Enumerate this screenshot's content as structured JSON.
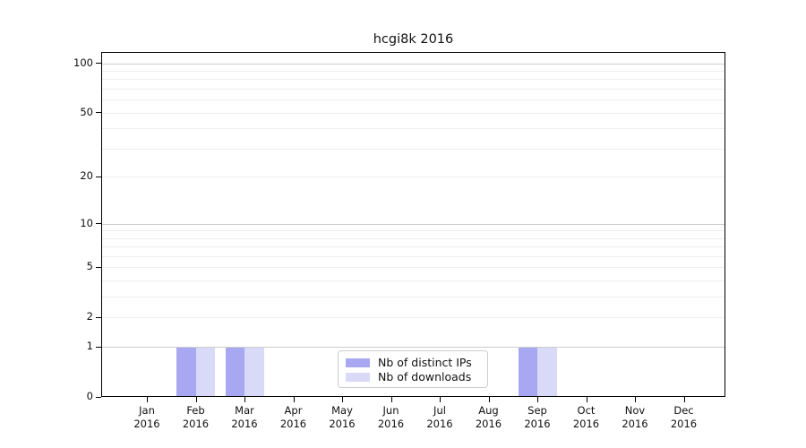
{
  "chart_data": {
    "type": "bar",
    "title": "hcgi8k 2016",
    "categories": [
      "Jan 2016",
      "Feb 2016",
      "Mar 2016",
      "Apr 2016",
      "May 2016",
      "Jun 2016",
      "Jul 2016",
      "Aug 2016",
      "Sep 2016",
      "Oct 2016",
      "Nov 2016",
      "Dec 2016"
    ],
    "series": [
      {
        "name": "Nb of distinct IPs",
        "color": "#a8a8f2",
        "values": [
          0,
          1,
          1,
          0,
          0,
          0,
          0,
          0,
          1,
          0,
          0,
          0
        ]
      },
      {
        "name": "Nb of downloads",
        "color": "#d9d9f8",
        "values": [
          0,
          1,
          1,
          0,
          0,
          0,
          0,
          0,
          1,
          0,
          0,
          0
        ]
      }
    ],
    "xlabel": "",
    "ylabel": "",
    "yscale": "log1p",
    "ylim": [
      0,
      117
    ],
    "y_ticks": [
      0,
      1,
      2,
      5,
      10,
      20,
      50,
      100
    ],
    "y_gridlines_major": [
      1,
      10,
      100
    ],
    "y_gridlines_minor": [
      2,
      3,
      4,
      5,
      6,
      7,
      8,
      9,
      20,
      30,
      40,
      50,
      60,
      70,
      80,
      90
    ],
    "grid": "horizontal",
    "legend_position": "bottom-center",
    "colors": {
      "axis": "#000000",
      "grid_major": "#cdcdcd",
      "grid_minor": "#eeeeee",
      "text": "#111111",
      "legend_border": "#cccccc"
    }
  }
}
